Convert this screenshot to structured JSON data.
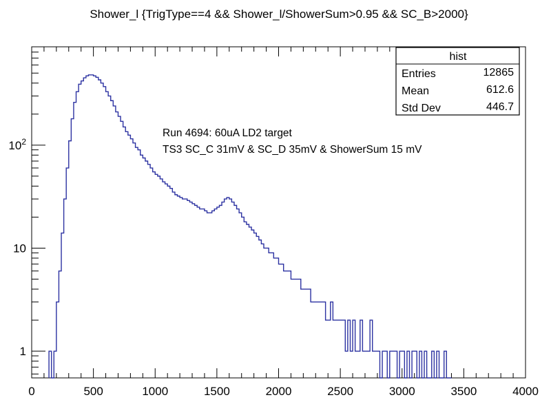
{
  "chart_data": {
    "type": "bar",
    "style": "step-histogram",
    "title": "Shower_l {TrigType==4 && Shower_l/ShowerSum>0.95 && SC_B>2000}",
    "xlim": [
      0,
      4000
    ],
    "ylim": [
      0.55,
      900
    ],
    "y_scale": "log",
    "x_ticks": [
      "0",
      "500",
      "1000",
      "1500",
      "2000",
      "2500",
      "3000",
      "3500",
      "4000"
    ],
    "y_ticks": [
      {
        "value": 1,
        "label": "1"
      },
      {
        "value": 10,
        "label": "10"
      },
      {
        "value": 100,
        "label": "10^2"
      }
    ],
    "line_color": "#2b31a1",
    "bin_width": 20,
    "x_start": 140,
    "values": [
      1,
      0,
      1,
      3,
      6,
      14,
      30,
      60,
      110,
      180,
      260,
      330,
      390,
      420,
      450,
      470,
      480,
      480,
      470,
      455,
      430,
      400,
      370,
      330,
      300,
      270,
      240,
      210,
      190,
      170,
      150,
      135,
      125,
      115,
      105,
      95,
      90,
      80,
      75,
      70,
      65,
      60,
      55,
      52,
      50,
      47,
      44,
      42,
      40,
      38,
      35,
      33,
      32,
      31,
      30,
      30,
      29,
      28,
      27,
      26,
      25,
      24,
      24,
      23,
      22,
      22,
      23,
      24,
      25,
      26,
      28,
      30,
      31,
      30,
      28,
      26,
      24,
      22,
      20,
      18,
      17,
      16,
      15,
      14,
      13,
      12,
      11,
      10,
      10,
      9,
      9,
      8,
      8,
      7,
      7,
      6,
      6,
      6,
      5,
      5,
      5,
      5,
      4,
      4,
      4,
      4,
      3,
      3,
      3,
      3,
      3,
      3,
      2,
      2,
      3,
      2,
      2,
      2,
      2,
      2,
      1,
      2,
      1,
      2,
      1,
      1,
      2,
      1,
      1,
      1,
      2,
      1,
      1,
      1,
      0,
      1,
      1,
      0,
      1,
      1,
      1,
      0,
      1,
      1,
      0,
      1,
      0,
      1,
      1,
      0,
      1,
      0,
      1,
      0,
      0,
      1,
      0,
      1,
      0,
      0,
      1,
      0,
      0
    ],
    "stats": {
      "name": "hist",
      "rows": [
        {
          "label": "Entries",
          "value": "12865"
        },
        {
          "label": "Mean",
          "value": "612.6"
        },
        {
          "label": "Std Dev",
          "value": "446.7"
        }
      ]
    },
    "annotations": [
      "Run 4694:  60uA LD2 target",
      "TS3 SC_C 31mV & SC_D 35mV & ShowerSum 15 mV"
    ]
  }
}
